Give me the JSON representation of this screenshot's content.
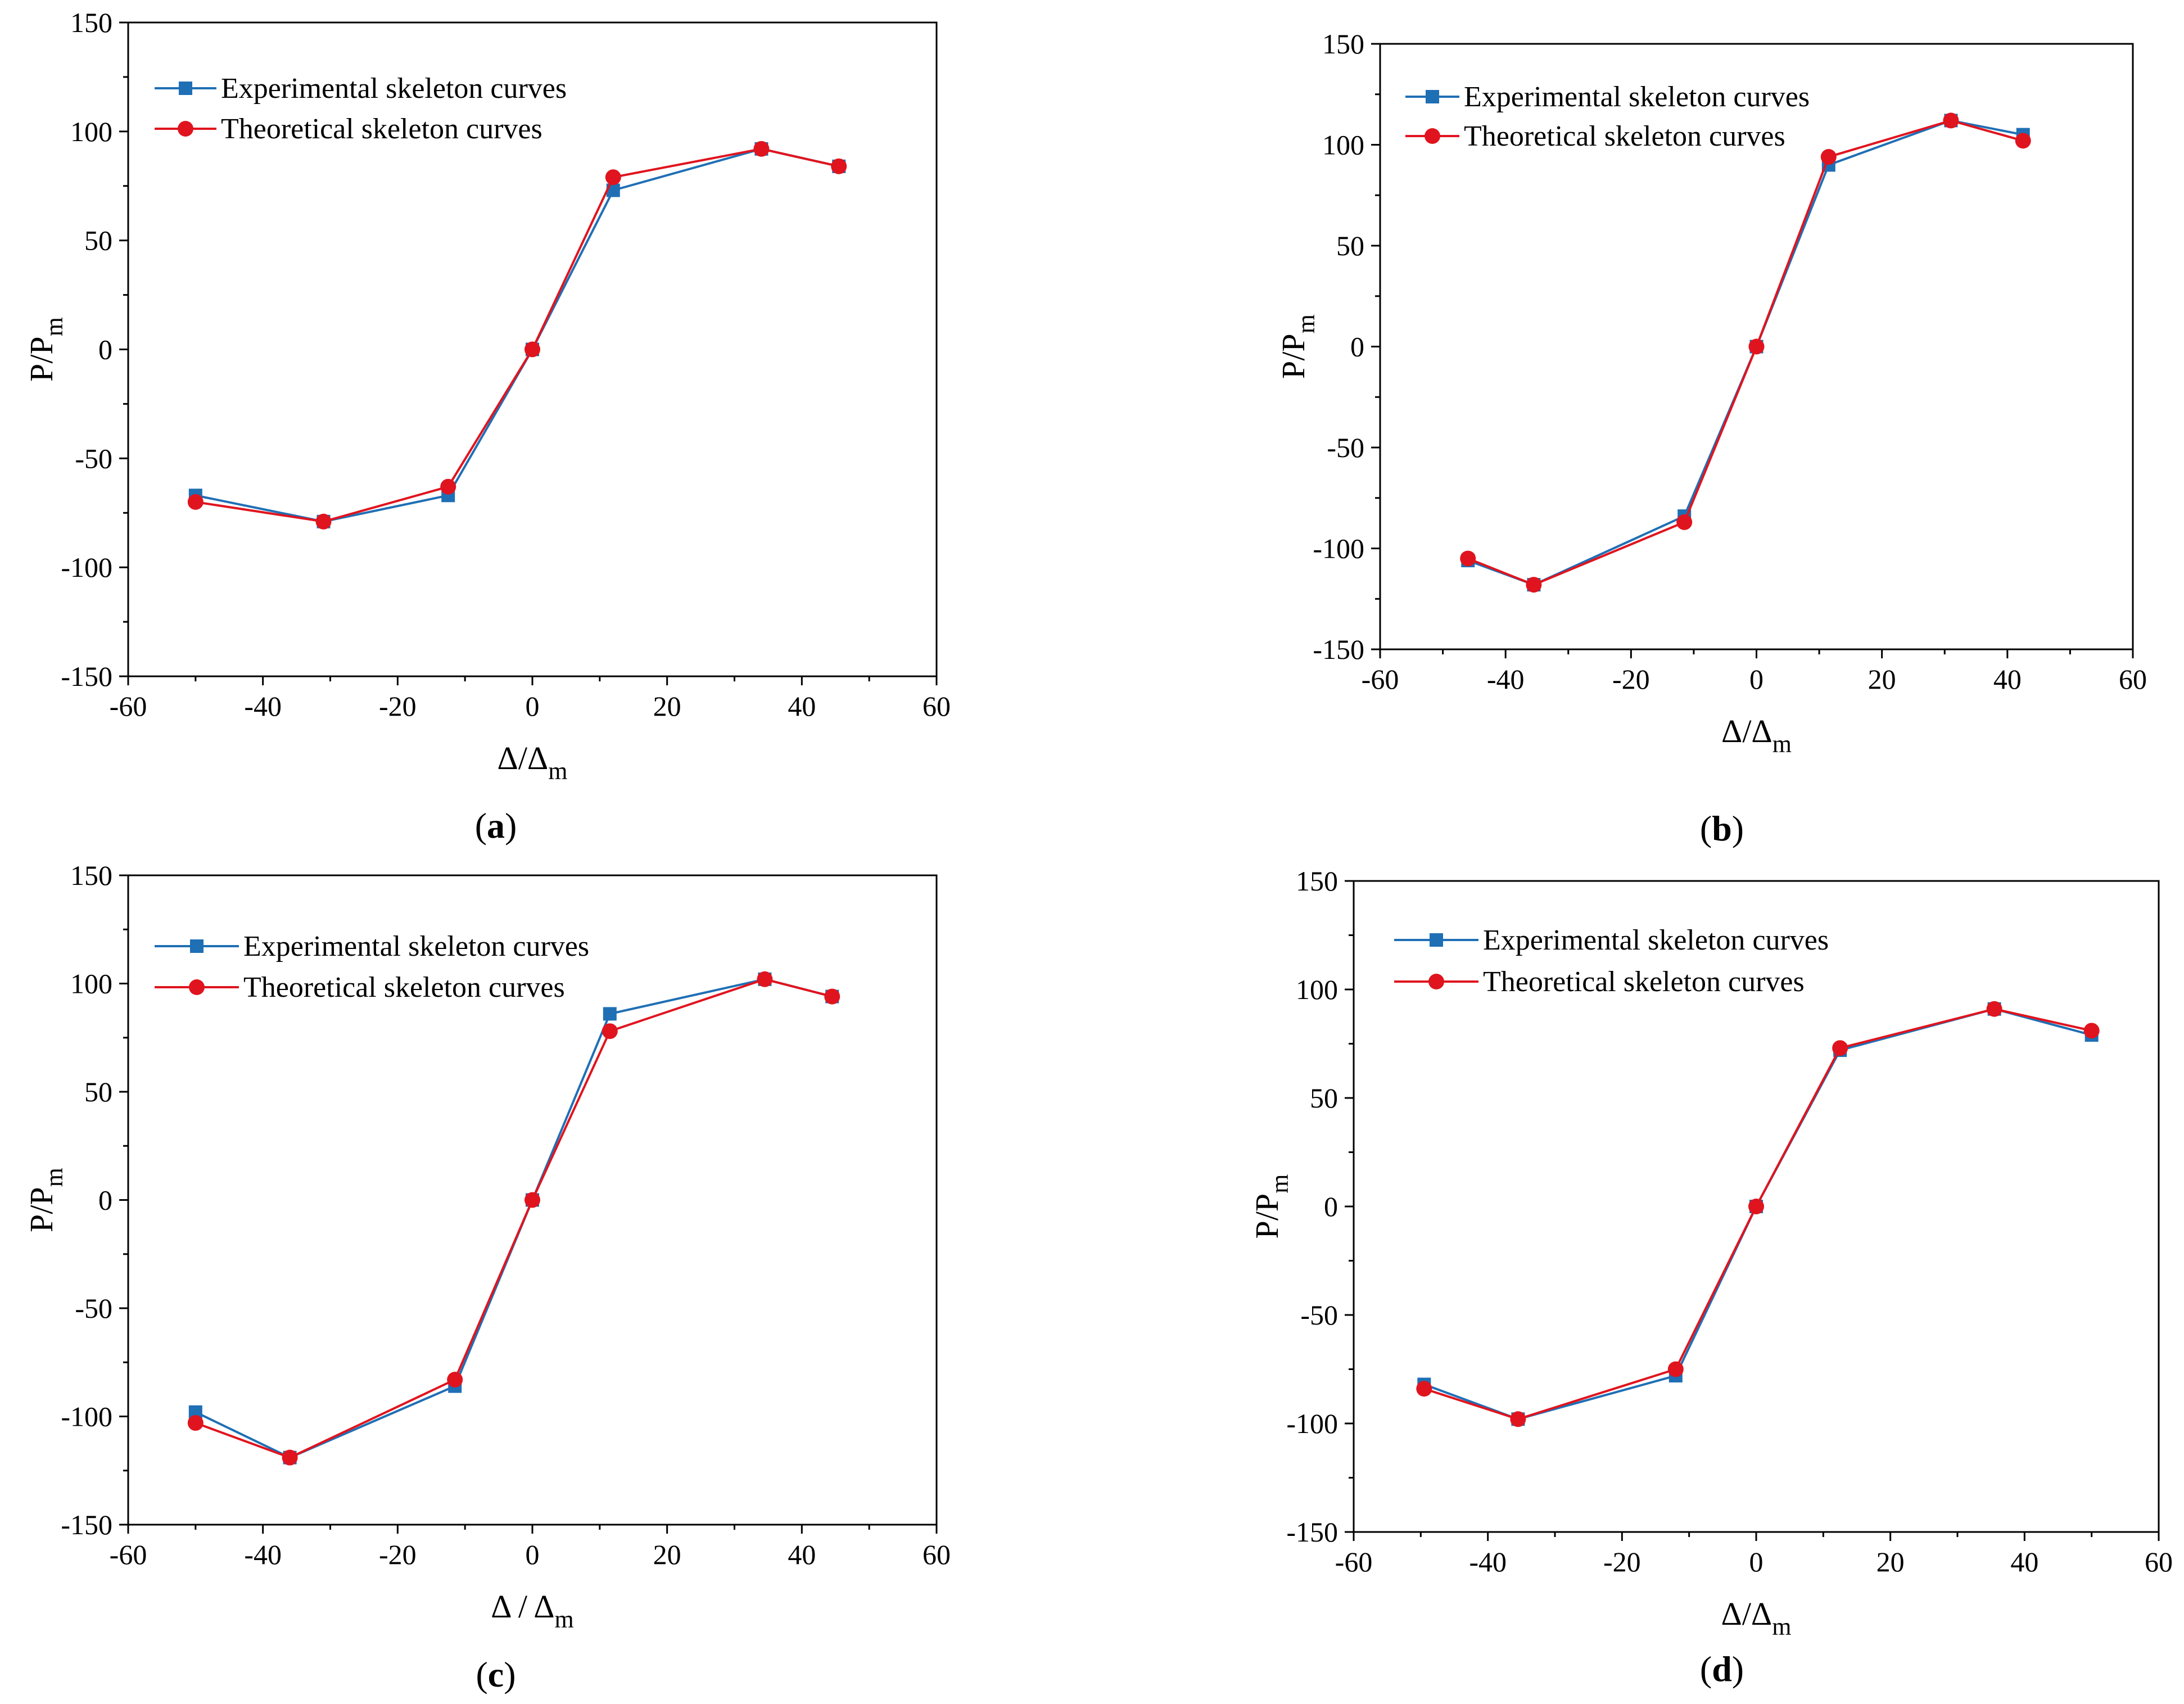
{
  "colors": {
    "experimental": "#1f6fb5",
    "theoretical": "#e0141e",
    "axis": "#000000"
  },
  "chart_data": [
    {
      "panel": "(a)",
      "panel_letter": "a",
      "type": "line",
      "xlabel": "Δ/Δ",
      "xlabel_sub": "m",
      "ylabel": "P/P",
      "ylabel_sub": "m",
      "xlim": [
        -60,
        60
      ],
      "ylim": [
        -150,
        150
      ],
      "xticks": [
        -60,
        -40,
        -20,
        0,
        20,
        40,
        60
      ],
      "yticks": [
        150,
        100,
        50,
        0,
        -50,
        -100,
        -150
      ],
      "legend_position": "top-left",
      "series": [
        {
          "name": "Experimental skeleton curves",
          "marker": "square",
          "x": [
            -50,
            -31,
            -12.5,
            0,
            12,
            34,
            45.5
          ],
          "y": [
            -67,
            -79,
            -67,
            0,
            73,
            92,
            84
          ]
        },
        {
          "name": "Theoretical skeleton curves",
          "marker": "circle",
          "x": [
            -50,
            -31,
            -12.5,
            0,
            12,
            34,
            45.5
          ],
          "y": [
            -70,
            -79,
            -63,
            0,
            79,
            92,
            84
          ]
        }
      ]
    },
    {
      "panel": "(b)",
      "panel_letter": "b",
      "type": "line",
      "xlabel": "Δ/Δ",
      "xlabel_sub": "m",
      "ylabel": "P/P",
      "ylabel_sub": "m",
      "xlim": [
        -60,
        60
      ],
      "ylim": [
        -150,
        150
      ],
      "xticks": [
        -60,
        -40,
        -20,
        0,
        20,
        40,
        60
      ],
      "yticks": [
        150,
        100,
        50,
        0,
        -50,
        -100,
        -150
      ],
      "legend_position": "top-left",
      "series": [
        {
          "name": "Experimental skeleton curves",
          "marker": "square",
          "x": [
            -46,
            -35.5,
            -11.5,
            0,
            11.5,
            31,
            42.5
          ],
          "y": [
            -106,
            -118,
            -84,
            0,
            90,
            112,
            105
          ]
        },
        {
          "name": "Theoretical skeleton curves",
          "marker": "circle",
          "x": [
            -46,
            -35.5,
            -11.5,
            0,
            11.5,
            31,
            42.5
          ],
          "y": [
            -105,
            -118,
            -87,
            0,
            94,
            112,
            102
          ]
        }
      ]
    },
    {
      "panel": "(c)",
      "panel_letter": "c",
      "type": "line",
      "xlabel": "Δ / Δ",
      "xlabel_sub": "m",
      "ylabel": "P/P",
      "ylabel_sub": "m",
      "xlim": [
        -60,
        60
      ],
      "ylim": [
        -150,
        150
      ],
      "xticks": [
        -60,
        -40,
        -20,
        0,
        20,
        40,
        60
      ],
      "yticks": [
        150,
        100,
        50,
        0,
        -50,
        -100,
        -150
      ],
      "legend_position": "top-left",
      "series": [
        {
          "name": "Experimental skeleton curves",
          "marker": "square",
          "x": [
            -50,
            -36,
            -11.5,
            0,
            11.5,
            34.5,
            44.5
          ],
          "y": [
            -98,
            -119,
            -86,
            0,
            86,
            102,
            94
          ]
        },
        {
          "name": "Theoretical skeleton curves",
          "marker": "circle",
          "x": [
            -50,
            -36,
            -11.5,
            0,
            11.5,
            34.5,
            44.5
          ],
          "y": [
            -103,
            -119,
            -83,
            0,
            78,
            102,
            94
          ]
        }
      ]
    },
    {
      "panel": "(d)",
      "panel_letter": "d",
      "type": "line",
      "xlabel": "Δ/Δ",
      "xlabel_sub": "m",
      "ylabel": "P/P",
      "ylabel_sub": "m",
      "xlim": [
        -60,
        60
      ],
      "ylim": [
        -150,
        150
      ],
      "xticks": [
        -60,
        -40,
        -20,
        0,
        20,
        40,
        60
      ],
      "yticks": [
        150,
        100,
        50,
        0,
        -50,
        -100,
        -150
      ],
      "legend_position": "top-left",
      "series": [
        {
          "name": "Experimental skeleton curves",
          "marker": "square",
          "x": [
            -49.5,
            -35.5,
            -12,
            0,
            12.5,
            35.5,
            50
          ],
          "y": [
            -82,
            -98,
            -78,
            0,
            72,
            91,
            79
          ]
        },
        {
          "name": "Theoretical skeleton curves",
          "marker": "circle",
          "x": [
            -49.5,
            -35.5,
            -12,
            0,
            12.5,
            35.5,
            50
          ],
          "y": [
            -84,
            -98,
            -75,
            0,
            73,
            91,
            81
          ]
        }
      ]
    }
  ]
}
